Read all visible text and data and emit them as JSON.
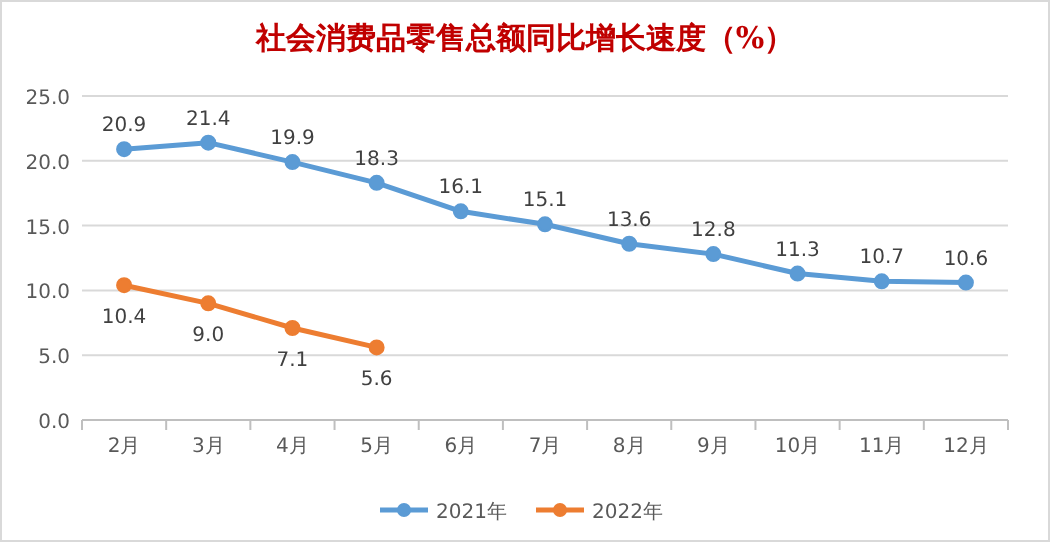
{
  "chart_data": {
    "type": "line",
    "title": "社会消费品零售总额同比增长速度（%）",
    "categories": [
      "2月",
      "3月",
      "4月",
      "5月",
      "6月",
      "7月",
      "8月",
      "9月",
      "10月",
      "11月",
      "12月"
    ],
    "series": [
      {
        "name": "2021年",
        "color": "#5b9bd5",
        "values": [
          20.9,
          21.4,
          19.9,
          18.3,
          16.1,
          15.1,
          13.6,
          12.8,
          11.3,
          10.7,
          10.6
        ],
        "value_labels": [
          "20.9",
          "21.4",
          "19.9",
          "18.3",
          "16.1",
          "15.1",
          "13.6",
          "12.8",
          "11.3",
          "10.7",
          "10.6"
        ]
      },
      {
        "name": "2022年",
        "color": "#ed7d31",
        "values": [
          10.4,
          9.0,
          7.1,
          5.6,
          null,
          null,
          null,
          null,
          null,
          null,
          null
        ],
        "value_labels": [
          "10.4",
          "9.0",
          "7.1",
          "5.6",
          null,
          null,
          null,
          null,
          null,
          null,
          null
        ]
      }
    ],
    "ylim": [
      0,
      25
    ],
    "yticks": [
      {
        "value": 0,
        "label": "0.0"
      },
      {
        "value": 5,
        "label": "5.0"
      },
      {
        "value": 10,
        "label": "10.0"
      },
      {
        "value": 15,
        "label": "15.0"
      },
      {
        "value": 20,
        "label": "20.0"
      },
      {
        "value": 25,
        "label": "25.0"
      }
    ],
    "grid": "y",
    "legend": "bottom",
    "marker": "circle"
  }
}
